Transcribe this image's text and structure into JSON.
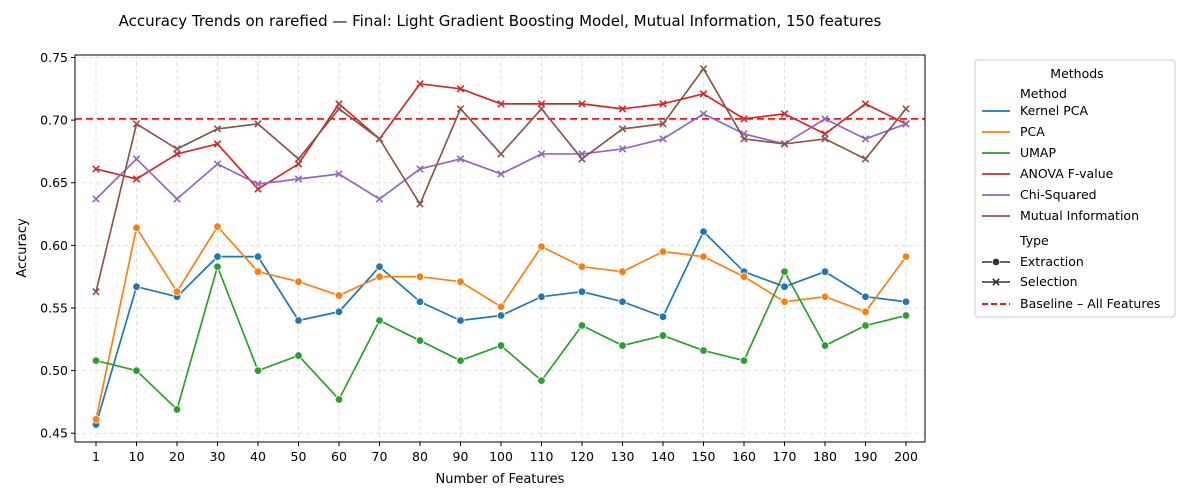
{
  "chart_data": {
    "type": "line",
    "title": "Accuracy Trends on rarefied — Final: Light Gradient Boosting Model, Mutual Information, 150 features",
    "xlabel": "Number of Features",
    "ylabel": "Accuracy",
    "categories": [
      "1",
      "10",
      "20",
      "30",
      "40",
      "50",
      "60",
      "70",
      "80",
      "90",
      "100",
      "110",
      "120",
      "130",
      "140",
      "150",
      "160",
      "170",
      "180",
      "190",
      "200"
    ],
    "ylim": [
      0.443,
      0.752
    ],
    "yticks": [
      "0.45",
      "0.50",
      "0.55",
      "0.60",
      "0.65",
      "0.70",
      "0.75"
    ],
    "ytick_values": [
      0.45,
      0.5,
      0.55,
      0.6,
      0.65,
      0.7,
      0.75
    ],
    "grid": true,
    "baseline": {
      "label": "Baseline – All Features",
      "value": 0.701,
      "color": "#e41a1c"
    },
    "legend": {
      "title": "Methods",
      "placement": "outside-right",
      "method_header": "Method",
      "type_header": "Type",
      "types": [
        {
          "name": "Extraction",
          "marker": "circle"
        },
        {
          "name": "Selection",
          "marker": "x"
        }
      ]
    },
    "series": [
      {
        "name": "Kernel PCA",
        "type": "Extraction",
        "marker": "circle",
        "color": "#1f77b4",
        "values": [
          0.457,
          0.567,
          0.559,
          0.591,
          0.591,
          0.54,
          0.547,
          0.583,
          0.555,
          0.54,
          0.544,
          0.559,
          0.563,
          0.555,
          0.543,
          0.611,
          0.579,
          0.567,
          0.579,
          0.559,
          0.555
        ]
      },
      {
        "name": "PCA",
        "type": "Extraction",
        "marker": "circle",
        "color": "#ff7f0e",
        "values": [
          0.461,
          0.614,
          0.563,
          0.615,
          0.579,
          0.571,
          0.56,
          0.575,
          0.575,
          0.571,
          0.551,
          0.599,
          0.583,
          0.579,
          0.595,
          0.591,
          0.575,
          0.555,
          0.559,
          0.547,
          0.591
        ]
      },
      {
        "name": "UMAP",
        "type": "Extraction",
        "marker": "circle",
        "color": "#2ca02c",
        "values": [
          0.508,
          0.5,
          0.469,
          0.583,
          0.5,
          0.512,
          0.477,
          0.54,
          0.524,
          0.508,
          0.52,
          0.492,
          0.536,
          0.52,
          0.528,
          0.516,
          0.508,
          0.579,
          0.52,
          0.536,
          0.544
        ]
      },
      {
        "name": "ANOVA F-value",
        "type": "Selection",
        "marker": "x",
        "color": "#d62728",
        "values": [
          0.661,
          0.653,
          0.673,
          0.681,
          0.645,
          0.665,
          0.713,
          0.685,
          0.729,
          0.725,
          0.713,
          0.713,
          0.713,
          0.709,
          0.713,
          0.721,
          0.701,
          0.705,
          0.689,
          0.713,
          0.697
        ]
      },
      {
        "name": "Chi-Squared",
        "type": "Selection",
        "marker": "x",
        "color": "#9467bd",
        "values": [
          0.637,
          0.669,
          0.637,
          0.665,
          0.649,
          0.653,
          0.657,
          0.637,
          0.661,
          0.669,
          0.657,
          0.673,
          0.673,
          0.677,
          0.685,
          0.705,
          0.689,
          0.681,
          0.701,
          0.685,
          0.697
        ]
      },
      {
        "name": "Mutual Information",
        "type": "Selection",
        "marker": "x",
        "color": "#8c564b",
        "values": [
          0.563,
          0.697,
          0.677,
          0.693,
          0.697,
          0.669,
          0.709,
          0.685,
          0.633,
          0.709,
          0.673,
          0.709,
          0.669,
          0.693,
          0.697,
          0.741,
          0.685,
          0.681,
          0.685,
          0.669,
          0.709
        ]
      }
    ]
  }
}
